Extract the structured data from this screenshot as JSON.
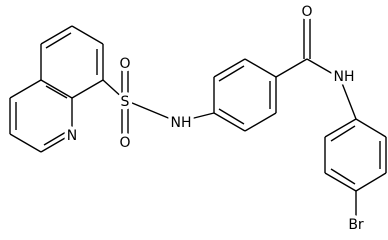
{
  "atoms": [
    {
      "label": "N"
    },
    {
      "label": "S"
    },
    {
      "label": "O"
    },
    {
      "label": "O"
    },
    {
      "label": "NH"
    },
    {
      "label": "O"
    },
    {
      "label": "NH"
    },
    {
      "label": "Br"
    }
  ]
}
